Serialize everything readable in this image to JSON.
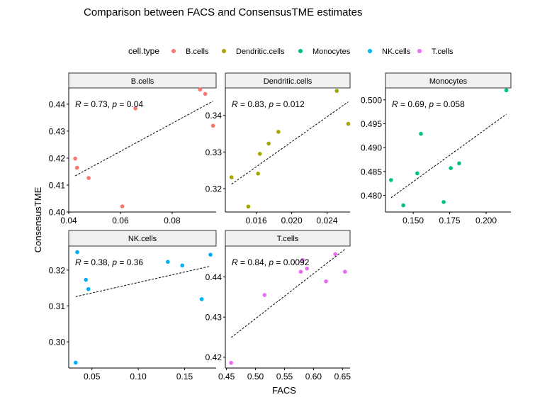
{
  "chart_data": {
    "title": "Comparison between FACS and ConsensusTME estimates",
    "xlabel": "FACS",
    "ylabel": "ConsensusTME",
    "legend": {
      "title": "cell.type",
      "position": "top",
      "entries": [
        {
          "label": "B.cells",
          "color": "#F8766D"
        },
        {
          "label": "Dendritic.cells",
          "color": "#A3A500"
        },
        {
          "label": "Monocytes",
          "color": "#00BF7D"
        },
        {
          "label": "NK.cells",
          "color": "#00B0F6"
        },
        {
          "label": "T.cells",
          "color": "#E76BF3"
        }
      ]
    },
    "panels": [
      {
        "name": "B.cells",
        "type": "scatter",
        "color": "#F8766D",
        "annotation": {
          "R": "0.73",
          "p": "0.04"
        },
        "xlim": [
          0.04,
          0.097
        ],
        "ylim": [
          0.4,
          0.446
        ],
        "xticks": [
          {
            "v": 0.04,
            "label": "0.04"
          },
          {
            "v": 0.06,
            "label": "0.06"
          },
          {
            "v": 0.08,
            "label": "0.08"
          }
        ],
        "yticks": [
          {
            "v": 0.4,
            "label": "0.40"
          },
          {
            "v": 0.41,
            "label": "0.41"
          },
          {
            "v": 0.42,
            "label": "0.42"
          },
          {
            "v": 0.43,
            "label": "0.43"
          },
          {
            "v": 0.44,
            "label": "0.44"
          }
        ],
        "points": [
          [
            0.0425,
            0.4198
          ],
          [
            0.0432,
            0.4164
          ],
          [
            0.0477,
            0.4126
          ],
          [
            0.0607,
            0.4021
          ],
          [
            0.0658,
            0.4384
          ],
          [
            0.0908,
            0.4454
          ],
          [
            0.0928,
            0.4438
          ],
          [
            0.0958,
            0.432
          ]
        ],
        "fit": [
          [
            0.0425,
            0.4134
          ],
          [
            0.0958,
            0.4411
          ]
        ]
      },
      {
        "name": "Dendritic.cells",
        "type": "scatter",
        "color": "#A3A500",
        "annotation": {
          "R": "0.83",
          "p": "0.012"
        },
        "xlim": [
          0.0125,
          0.0266
        ],
        "ylim": [
          0.3136,
          0.3475
        ],
        "xticks": [
          {
            "v": 0.016,
            "label": "0.016"
          },
          {
            "v": 0.02,
            "label": "0.020"
          },
          {
            "v": 0.024,
            "label": "0.024"
          }
        ],
        "yticks": [
          {
            "v": 0.32,
            "label": "0.32"
          },
          {
            "v": 0.33,
            "label": "0.33"
          },
          {
            "v": 0.34,
            "label": "0.34"
          }
        ],
        "points": [
          [
            0.0132,
            0.3231
          ],
          [
            0.0151,
            0.3151
          ],
          [
            0.0162,
            0.3241
          ],
          [
            0.0164,
            0.3295
          ],
          [
            0.0174,
            0.3323
          ],
          [
            0.0185,
            0.3355
          ],
          [
            0.0251,
            0.3467
          ],
          [
            0.0264,
            0.3377
          ]
        ],
        "fit": [
          [
            0.0132,
            0.3212
          ],
          [
            0.0264,
            0.3437
          ]
        ]
      },
      {
        "name": "Monocytes",
        "type": "scatter",
        "color": "#00BF7D",
        "annotation": {
          "R": "0.69",
          "p": "0.058"
        },
        "xlim": [
          0.131,
          0.217
        ],
        "ylim": [
          0.4765,
          0.5025
        ],
        "xticks": [
          {
            "v": 0.15,
            "label": "0.150"
          },
          {
            "v": 0.175,
            "label": "0.175"
          },
          {
            "v": 0.2,
            "label": "0.200"
          }
        ],
        "yticks": [
          {
            "v": 0.48,
            "label": "0.480"
          },
          {
            "v": 0.485,
            "label": "0.485"
          },
          {
            "v": 0.49,
            "label": "0.490"
          },
          {
            "v": 0.495,
            "label": "0.495"
          },
          {
            "v": 0.5,
            "label": "0.500"
          }
        ],
        "points": [
          [
            0.1348,
            0.4832
          ],
          [
            0.1432,
            0.4779
          ],
          [
            0.1528,
            0.4846
          ],
          [
            0.1553,
            0.4929
          ],
          [
            0.1709,
            0.4786
          ],
          [
            0.1758,
            0.4857
          ],
          [
            0.1815,
            0.4867
          ],
          [
            0.2139,
            0.502
          ]
        ],
        "fit": [
          [
            0.1348,
            0.4795
          ],
          [
            0.2139,
            0.497
          ]
        ]
      },
      {
        "name": "NK.cells",
        "type": "scatter",
        "color": "#00B0F6",
        "annotation": {
          "R": "0.38",
          "p": "0.36"
        },
        "xlim": [
          0.025,
          0.184
        ],
        "ylim": [
          0.2927,
          0.3267
        ],
        "xticks": [
          {
            "v": 0.05,
            "label": "0.05"
          },
          {
            "v": 0.1,
            "label": "0.10"
          },
          {
            "v": 0.15,
            "label": "0.15"
          }
        ],
        "yticks": [
          {
            "v": 0.3,
            "label": "0.30"
          },
          {
            "v": 0.31,
            "label": "0.31"
          },
          {
            "v": 0.32,
            "label": "0.32"
          }
        ],
        "points": [
          [
            0.0325,
            0.2942
          ],
          [
            0.0342,
            0.325
          ],
          [
            0.0435,
            0.3173
          ],
          [
            0.0462,
            0.3147
          ],
          [
            0.1319,
            0.3223
          ],
          [
            0.1475,
            0.3213
          ],
          [
            0.1684,
            0.3119
          ],
          [
            0.1779,
            0.3243
          ]
        ],
        "fit": [
          [
            0.0325,
            0.3126
          ],
          [
            0.1779,
            0.3211
          ]
        ]
      },
      {
        "name": "T.cells",
        "type": "scatter",
        "color": "#E76BF3",
        "annotation": {
          "R": "0.84",
          "p": "0.0092"
        },
        "xlim": [
          0.448,
          0.663
        ],
        "ylim": [
          0.4173,
          0.4477
        ],
        "xticks": [
          {
            "v": 0.45,
            "label": "0.45"
          },
          {
            "v": 0.5,
            "label": "0.50"
          },
          {
            "v": 0.55,
            "label": "0.55"
          },
          {
            "v": 0.6,
            "label": "0.60"
          },
          {
            "v": 0.65,
            "label": "0.65"
          }
        ],
        "yticks": [
          {
            "v": 0.42,
            "label": "0.42"
          },
          {
            "v": 0.43,
            "label": "0.43"
          },
          {
            "v": 0.44,
            "label": "0.44"
          }
        ],
        "points": [
          [
            0.458,
            0.4186
          ],
          [
            0.5157,
            0.4355
          ],
          [
            0.5781,
            0.4413
          ],
          [
            0.5811,
            0.4442
          ],
          [
            0.5888,
            0.4421
          ],
          [
            0.6216,
            0.4389
          ],
          [
            0.6375,
            0.4457
          ],
          [
            0.6542,
            0.4413
          ]
        ],
        "fit": [
          [
            0.458,
            0.4249
          ],
          [
            0.6542,
            0.4469
          ]
        ]
      }
    ]
  }
}
